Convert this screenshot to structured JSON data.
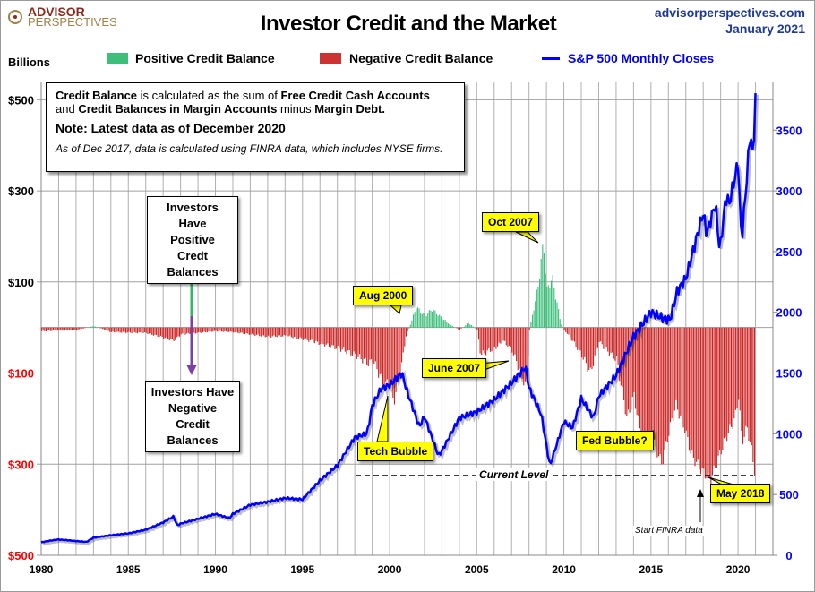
{
  "header": {
    "logo_line1": "ADVISOR",
    "logo_line2": "PERSPECTIVES",
    "title": "Investor Credit and the Market",
    "site": "advisorperspectives.com",
    "date": "January 2021"
  },
  "legend": {
    "units": "Billions",
    "positive": "Positive Credit Balance",
    "negative": "Negative Credit Balance",
    "sp500": "S&P 500 Monthly Closes"
  },
  "colors": {
    "positive": "#3dbf7b",
    "negative": "#cc2222",
    "sp500": "#0000ff",
    "callout": "#ffff00",
    "green_arrow": "#2dbb6a",
    "purple_arrow": "#7a3fa8"
  },
  "info": {
    "p1_b1": "Credit Balance",
    "p1_t1": " is calculated as the sum of ",
    "p1_b2": "Free Credit Cash Accounts",
    "p2_t1": "and ",
    "p2_b1": "Credit Balances in Margin Accounts",
    "p2_t2": " minus ",
    "p2_b2": "Margin Debt.",
    "note": "Note: Latest data as of December 2020",
    "italic": "As of Dec 2017, data is calculated using FINRA data, which includes NYSE firms."
  },
  "annotations": {
    "positive_box": [
      "Investors Have",
      "Positive",
      "Credt Balances"
    ],
    "negative_box": [
      "Investors Have",
      "Negative",
      "Credit Balances"
    ],
    "aug2000": "Aug 2000",
    "oct2007": "Oct 2007",
    "june2007": "June 2007",
    "tech_bubble": "Tech Bubble",
    "fed_bubble": "Fed Bubble?",
    "may2018": "May  2018",
    "current_level": "Current Level",
    "finra": "Start FINRA data"
  },
  "chart_data": {
    "type": "bar+line",
    "title": "Investor Credit and the Market",
    "left_axis": {
      "label": "Billions",
      "ticks": [
        "$500",
        "$300",
        "$100",
        "$100",
        "$300",
        "$500"
      ],
      "tick_values": [
        500,
        300,
        100,
        -100,
        -300,
        -500
      ],
      "range": [
        -500,
        540
      ]
    },
    "right_axis": {
      "ticks": [
        "0",
        "500",
        "1000",
        "1500",
        "2000",
        "2500",
        "3000",
        "3500"
      ],
      "tick_values": [
        0,
        500,
        1000,
        1500,
        2000,
        2500,
        3000,
        3500
      ],
      "range": [
        0,
        3900
      ]
    },
    "x_axis": {
      "ticks": [
        "1980",
        "1985",
        "1990",
        "1995",
        "2000",
        "2005",
        "2010",
        "2015",
        "2020"
      ],
      "tick_values": [
        1980,
        1985,
        1990,
        1995,
        2000,
        2005,
        2010,
        2015,
        2020
      ],
      "range": [
        1980,
        2022
      ]
    },
    "current_level": -325,
    "credit_balance": {
      "name": "Credit Balance (billions)",
      "x": [
        1980,
        1982,
        1983,
        1983.5,
        1984,
        1986,
        1987.6,
        1988,
        1990,
        1991,
        1993,
        1994,
        1995,
        1996,
        1997,
        1998,
        1998.8,
        1999,
        1999.7,
        2000,
        2000.2,
        2000.6,
        2000.9,
        2001.2,
        2001.5,
        2002,
        2002.4,
        2003,
        2003.5,
        2004,
        2004.5,
        2005,
        2005.2,
        2006,
        2006.5,
        2007,
        2007.8,
        2008,
        2008.5,
        2008.8,
        2009,
        2009.3,
        2009.8,
        2010,
        2010.5,
        2011,
        2011.5,
        2012,
        2012.3,
        2013,
        2013.6,
        2014,
        2014.5,
        2015,
        2015.6,
        2016,
        2016.4,
        2016.9,
        2017.3,
        2017.8,
        2018.4,
        2018.9,
        2019.3,
        2019.8,
        2020,
        2020.2,
        2020.5,
        2020.8,
        2020.95
      ],
      "values": [
        -8,
        -5,
        3,
        -3,
        -10,
        -12,
        -28,
        -15,
        -8,
        -10,
        -20,
        -18,
        -25,
        -35,
        -45,
        -60,
        -80,
        -70,
        -130,
        -110,
        -165,
        -100,
        -20,
        10,
        45,
        25,
        40,
        20,
        5,
        -5,
        10,
        -5,
        -60,
        -45,
        -30,
        -50,
        -130,
        -5,
        90,
        190,
        80,
        110,
        10,
        -5,
        -30,
        -60,
        -100,
        -30,
        -45,
        -70,
        -200,
        -150,
        -260,
        -240,
        -300,
        -230,
        -170,
        -220,
        -280,
        -310,
        -335,
        -280,
        -240,
        -200,
        -150,
        -250,
        -220,
        -280,
        -325
      ]
    },
    "sp500": {
      "name": "S&P 500 Monthly Closes",
      "x": [
        1980,
        1980.5,
        1981,
        1982.6,
        1983,
        1984,
        1985,
        1986,
        1987,
        1987.6,
        1987.8,
        1988,
        1989,
        1990,
        1990.8,
        1991,
        1992,
        1993,
        1994,
        1995,
        1996,
        1997,
        1998,
        1998.7,
        1999,
        1999.5,
        2000,
        2000.7,
        2001,
        2001.7,
        2002,
        2002.8,
        2003,
        2004,
        2005,
        2006,
        2007,
        2007.8,
        2008,
        2008.7,
        2009.2,
        2010,
        2010.5,
        2011,
        2011.7,
        2012,
        2013,
        2014,
        2015,
        2015.7,
        2016.1,
        2016.5,
        2017,
        2018,
        2018.2,
        2018.7,
        2018.95,
        2019.3,
        2019.5,
        2020,
        2020.2,
        2020.5,
        2020.7,
        2020.85,
        2021
      ],
      "values": [
        107,
        120,
        130,
        110,
        145,
        165,
        180,
        210,
        270,
        320,
        245,
        260,
        300,
        340,
        305,
        340,
        415,
        440,
        470,
        460,
        615,
        740,
        970,
        1000,
        1230,
        1370,
        1400,
        1500,
        1350,
        1060,
        1140,
        820,
        860,
        1130,
        1180,
        1280,
        1420,
        1550,
        1380,
        1160,
        735,
        1100,
        1050,
        1290,
        1130,
        1310,
        1480,
        1800,
        2000,
        1950,
        1940,
        2170,
        2280,
        2820,
        2640,
        2900,
        2500,
        2950,
        2900,
        3230,
        2580,
        3100,
        3500,
        3270,
        3760
      ]
    }
  }
}
